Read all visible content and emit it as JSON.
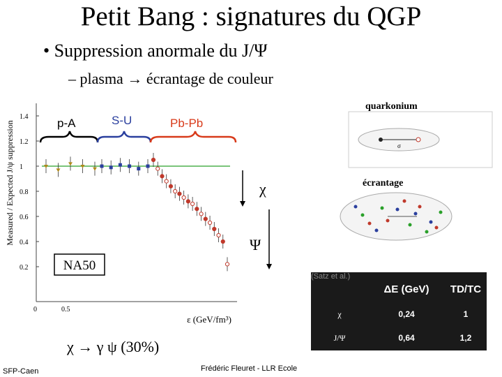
{
  "title": "Petit Bang : signatures du QGP",
  "bullet1": {
    "marker": "•",
    "text": "Suppression anormale du J/Ψ"
  },
  "bullet2": {
    "marker": "–",
    "text": "plasma → écrantage de couleur"
  },
  "plot": {
    "ylabel": "Measured / Expected J/ψ suppression",
    "yticks": [
      "1.4",
      "1.2",
      "1",
      "0.8",
      "0.6",
      "0.4",
      "0.2"
    ],
    "xticks": [
      "0",
      "0.5"
    ],
    "xlabel": "ε (GeV/fm³)",
    "experiment": "NA50",
    "systems": [
      {
        "label": "p-A",
        "color": "#000000"
      },
      {
        "label": "S-U",
        "color": "#2a3f9e"
      },
      {
        "label": "Pb-Pb",
        "color": "#d83a1a"
      }
    ],
    "colors": {
      "reference_line": "#2aa02a",
      "pbpb": "#c0392b",
      "su": "#2a3f9e"
    }
  },
  "chart_data": {
    "type": "scatter",
    "ylabel": "Measured / Expected J/ψ suppression",
    "xlabel": "ε (GeV/fm³)",
    "ylim": [
      0,
      1.5
    ],
    "series": [
      {
        "name": "p-A",
        "y": [
          1.0,
          0.97,
          1.02,
          1.0,
          0.98
        ]
      },
      {
        "name": "S-U",
        "y": [
          1.0,
          0.99,
          1.01,
          1.0,
          0.98,
          1.0
        ]
      },
      {
        "name": "Pb-Pb",
        "y": [
          1.05,
          0.98,
          0.92,
          0.88,
          0.84,
          0.8,
          0.78,
          0.75,
          0.72,
          0.7,
          0.66,
          0.62,
          0.58,
          0.55,
          0.5,
          0.45,
          0.4,
          0.22
        ]
      }
    ]
  },
  "arrows": {
    "chi": "χ",
    "psi": "Ψ"
  },
  "right": {
    "quarkonium": "quarkonium",
    "sigma": "σ",
    "ecrantage": "écrantage"
  },
  "decay": "χ → γ ψ (30%)",
  "satz": "(Satz et al.)",
  "table": {
    "headers": [
      "",
      "ΔE (GeV)",
      "TD/TC"
    ],
    "rows": [
      [
        "χ",
        "0,24",
        "1"
      ],
      [
        "J/Ψ",
        "0,64",
        "1,2"
      ]
    ]
  },
  "footer": {
    "left": "SFP-Caen",
    "center": "Frédéric Fleuret - LLR Ecole"
  }
}
